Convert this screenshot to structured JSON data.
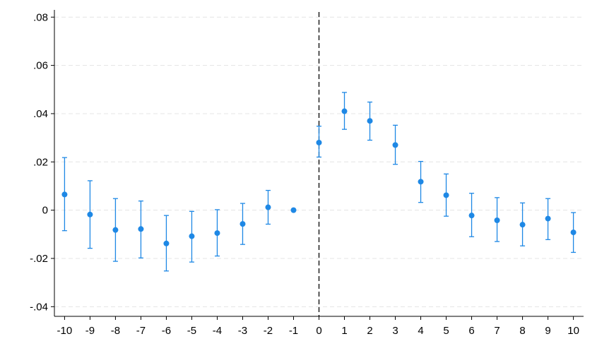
{
  "chart_data": {
    "type": "scatter",
    "subtype": "coefficient plot with confidence intervals",
    "title": "",
    "xlabel": "",
    "ylabel": "",
    "x": [
      -10,
      -9,
      -8,
      -7,
      -6,
      -5,
      -4,
      -3,
      -2,
      -1,
      0,
      1,
      2,
      3,
      4,
      5,
      6,
      7,
      8,
      9,
      10
    ],
    "estimate": [
      0.0065,
      -0.0018,
      -0.0082,
      -0.0078,
      -0.0138,
      -0.0108,
      -0.0095,
      -0.0057,
      0.0012,
      0.0,
      0.028,
      0.041,
      0.037,
      0.027,
      0.0118,
      0.0062,
      -0.0022,
      -0.0042,
      -0.006,
      -0.0035,
      -0.0092
    ],
    "ci_low": [
      -0.0085,
      -0.0158,
      -0.0212,
      -0.0198,
      -0.0252,
      -0.0215,
      -0.019,
      -0.0142,
      -0.0058,
      null,
      0.022,
      0.0335,
      0.029,
      0.019,
      0.0032,
      -0.0025,
      -0.011,
      -0.013,
      -0.0148,
      -0.0122,
      -0.0175
    ],
    "ci_high": [
      0.0218,
      0.0122,
      0.0048,
      0.0038,
      -0.0022,
      -0.0005,
      0.0002,
      0.0028,
      0.0082,
      null,
      0.0348,
      0.0488,
      0.0448,
      0.0352,
      0.0202,
      0.015,
      0.007,
      0.0052,
      0.003,
      0.0048,
      -0.001
    ],
    "xlim": [
      -10.4,
      10.4
    ],
    "ylim": [
      -0.044,
      0.083
    ],
    "yticks": [
      -0.04,
      -0.02,
      0,
      0.02,
      0.04,
      0.06,
      0.08
    ],
    "ytick_labels": [
      "-.04",
      "-.02",
      "0",
      ".02",
      ".04",
      ".06",
      ".08"
    ],
    "xticks": [
      -10,
      -9,
      -8,
      -7,
      -6,
      -5,
      -4,
      -3,
      -2,
      -1,
      0,
      1,
      2,
      3,
      4,
      5,
      6,
      7,
      8,
      9,
      10
    ],
    "xtick_labels": [
      "-10",
      "-9",
      "-8",
      "-7",
      "-6",
      "-5",
      "-4",
      "-3",
      "-2",
      "-1",
      "0",
      "1",
      "2",
      "3",
      "4",
      "5",
      "6",
      "7",
      "8",
      "9",
      "10"
    ],
    "reference_line_x": 0,
    "grid": "horizontal dashed",
    "legend": "none",
    "color": "#1e88e5"
  }
}
